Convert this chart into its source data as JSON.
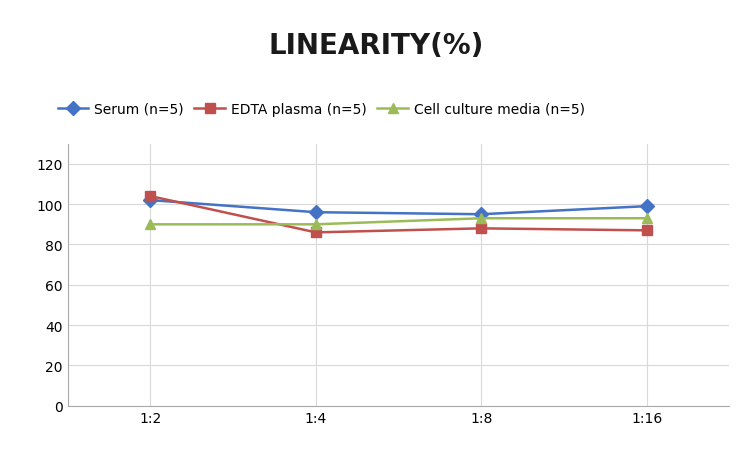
{
  "title": "LINEARITY(%)",
  "x_labels": [
    "1:2",
    "1:4",
    "1:8",
    "1:16"
  ],
  "x_positions": [
    0,
    1,
    2,
    3
  ],
  "series": [
    {
      "label": "Serum (n=5)",
      "values": [
        102,
        96,
        95,
        99
      ],
      "color": "#4472C4",
      "marker": "D",
      "linewidth": 1.8
    },
    {
      "label": "EDTA plasma (n=5)",
      "values": [
        104,
        86,
        88,
        87
      ],
      "color": "#C0504D",
      "marker": "s",
      "linewidth": 1.8
    },
    {
      "label": "Cell culture media (n=5)",
      "values": [
        90,
        90,
        93,
        93
      ],
      "color": "#9BBB59",
      "marker": "^",
      "linewidth": 1.8
    }
  ],
  "ylim": [
    0,
    130
  ],
  "yticks": [
    0,
    20,
    40,
    60,
    80,
    100,
    120
  ],
  "title_fontsize": 20,
  "title_fontweight": "bold",
  "legend_fontsize": 10,
  "tick_fontsize": 10,
  "background_color": "#ffffff",
  "grid_color": "#d9d9d9",
  "marker_size": 7
}
